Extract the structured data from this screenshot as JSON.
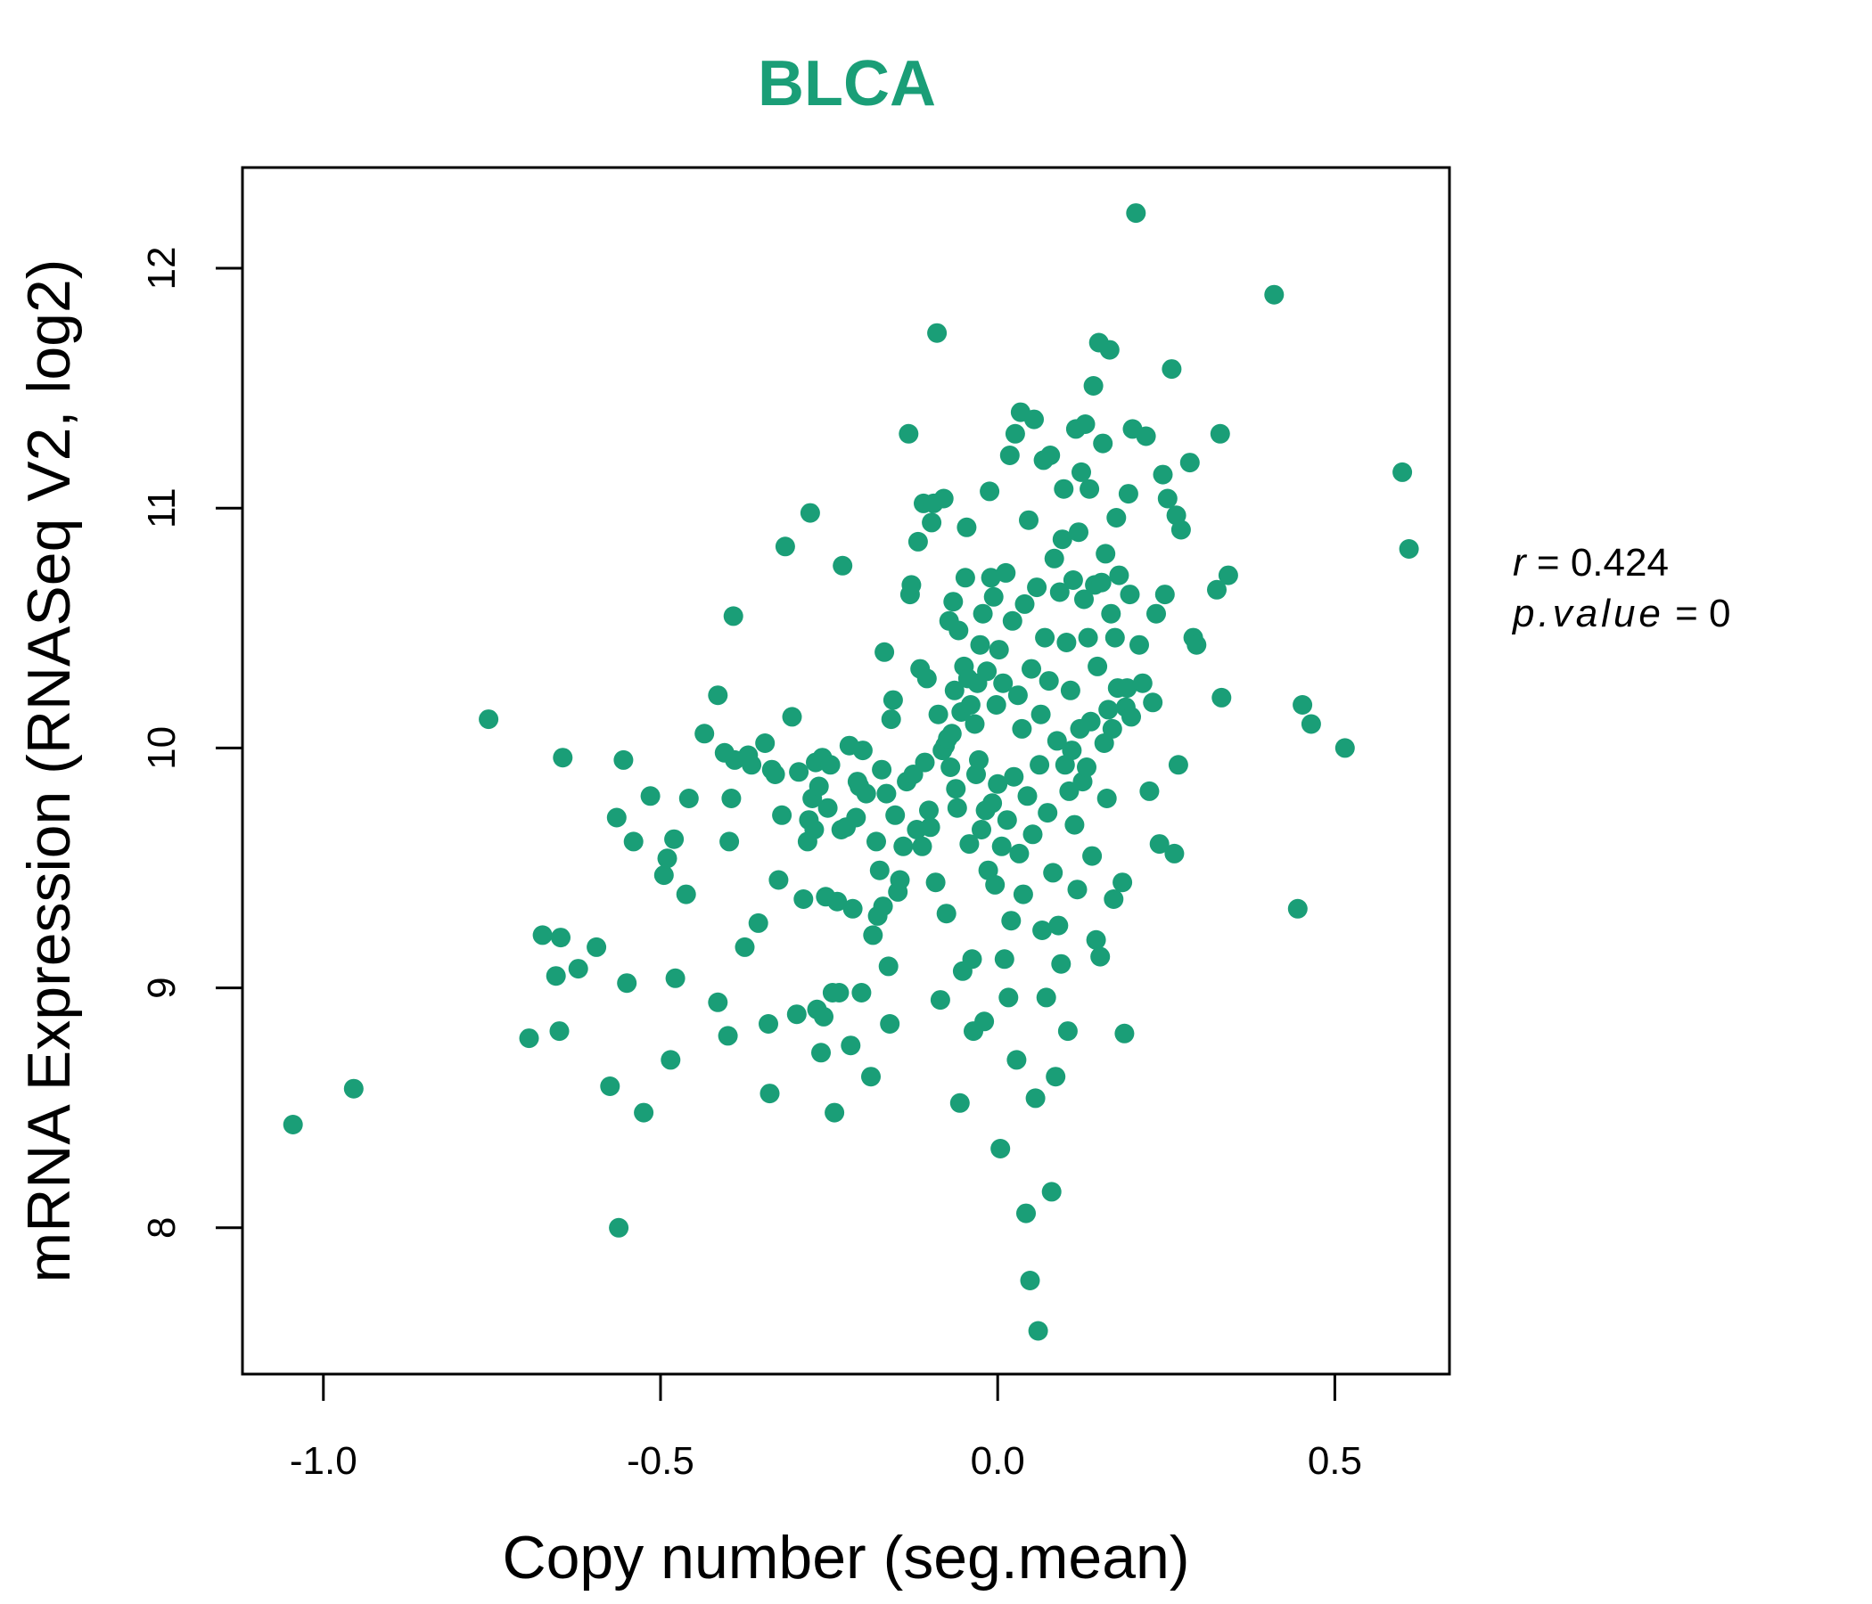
{
  "chart_data": {
    "type": "scatter",
    "title": "BLCA",
    "xlabel": "Copy number (seg.mean)",
    "ylabel": "mRNA Expression (RNASeq V2, log2)",
    "xlim": [
      -1.12,
      0.67
    ],
    "ylim": [
      7.39,
      12.42
    ],
    "x_ticks": [
      -1.0,
      -0.5,
      0.0,
      0.5
    ],
    "x_tick_labels": [
      "-1.0",
      "-0.5",
      "0.0",
      "0.5"
    ],
    "y_ticks": [
      8,
      9,
      10,
      11,
      12
    ],
    "y_tick_labels": [
      "8",
      "9",
      "10",
      "11",
      "12"
    ],
    "grid": false,
    "point_color": "#1a9e77",
    "stats": {
      "r_label": "r",
      "r_value": "0.424",
      "p_label": "p.value",
      "p_value": "0"
    },
    "series": [
      {
        "points": [
          [
            -1.045,
            8.43
          ],
          [
            -0.955,
            8.58
          ],
          [
            -0.755,
            10.12
          ],
          [
            -0.695,
            8.79
          ],
          [
            -0.675,
            9.22
          ],
          [
            -0.655,
            9.05
          ],
          [
            -0.65,
            8.82
          ],
          [
            -0.648,
            9.21
          ],
          [
            -0.645,
            9.96
          ],
          [
            -0.622,
            9.08
          ],
          [
            -0.595,
            9.17
          ],
          [
            -0.575,
            8.59
          ],
          [
            -0.565,
            9.71
          ],
          [
            -0.562,
            8.0
          ],
          [
            -0.555,
            9.95
          ],
          [
            -0.55,
            9.02
          ],
          [
            -0.54,
            9.61
          ],
          [
            -0.525,
            8.48
          ],
          [
            -0.515,
            9.8
          ],
          [
            -0.495,
            9.47
          ],
          [
            -0.49,
            9.54
          ],
          [
            -0.48,
            9.62
          ],
          [
            -0.478,
            9.04
          ],
          [
            -0.485,
            8.7
          ],
          [
            -0.462,
            9.39
          ],
          [
            -0.458,
            9.79
          ],
          [
            -0.435,
            10.06
          ],
          [
            -0.415,
            10.22
          ],
          [
            -0.415,
            8.94
          ],
          [
            -0.405,
            9.98
          ],
          [
            -0.4,
            8.8
          ],
          [
            -0.398,
            9.61
          ],
          [
            -0.395,
            9.79
          ],
          [
            -0.392,
            10.55
          ],
          [
            -0.39,
            9.95
          ],
          [
            -0.375,
            9.17
          ],
          [
            -0.37,
            9.97
          ],
          [
            -0.365,
            9.93
          ],
          [
            -0.355,
            9.27
          ],
          [
            -0.345,
            10.02
          ],
          [
            -0.34,
            8.85
          ],
          [
            -0.338,
            8.56
          ],
          [
            -0.335,
            9.91
          ],
          [
            -0.33,
            9.89
          ],
          [
            -0.325,
            9.45
          ],
          [
            -0.32,
            9.72
          ],
          [
            -0.315,
            10.84
          ],
          [
            -0.305,
            10.13
          ],
          [
            -0.298,
            8.89
          ],
          [
            -0.295,
            9.9
          ],
          [
            -0.288,
            9.37
          ],
          [
            -0.282,
            9.61
          ],
          [
            -0.28,
            9.7
          ],
          [
            -0.278,
            10.98
          ],
          [
            -0.275,
            9.79
          ],
          [
            -0.272,
            9.66
          ],
          [
            -0.27,
            9.94
          ],
          [
            -0.268,
            8.91
          ],
          [
            -0.265,
            9.84
          ],
          [
            -0.262,
            8.73
          ],
          [
            -0.26,
            9.96
          ],
          [
            -0.258,
            8.88
          ],
          [
            -0.255,
            9.38
          ],
          [
            -0.252,
            9.75
          ],
          [
            -0.248,
            9.93
          ],
          [
            -0.245,
            8.98
          ],
          [
            -0.242,
            8.48
          ],
          [
            -0.238,
            9.36
          ],
          [
            -0.235,
            8.98
          ],
          [
            -0.232,
            9.66
          ],
          [
            -0.23,
            10.76
          ],
          [
            -0.225,
            9.67
          ],
          [
            -0.22,
            10.01
          ],
          [
            -0.218,
            8.76
          ],
          [
            -0.215,
            9.33
          ],
          [
            -0.21,
            9.71
          ],
          [
            -0.208,
            9.86
          ],
          [
            -0.205,
            9.84
          ],
          [
            -0.202,
            8.98
          ],
          [
            -0.2,
            9.99
          ],
          [
            -0.195,
            9.81
          ],
          [
            -0.188,
            8.63
          ],
          [
            -0.185,
            9.22
          ],
          [
            -0.18,
            9.61
          ],
          [
            -0.178,
            9.3
          ],
          [
            -0.175,
            9.49
          ],
          [
            -0.172,
            9.91
          ],
          [
            -0.17,
            9.34
          ],
          [
            -0.168,
            10.4
          ],
          [
            -0.165,
            9.81
          ],
          [
            -0.162,
            9.09
          ],
          [
            -0.16,
            8.85
          ],
          [
            -0.158,
            10.12
          ],
          [
            -0.155,
            10.2
          ],
          [
            -0.152,
            9.72
          ],
          [
            -0.148,
            9.4
          ],
          [
            -0.145,
            9.45
          ],
          [
            -0.14,
            9.59
          ],
          [
            -0.135,
            9.86
          ],
          [
            -0.132,
            11.31
          ],
          [
            -0.13,
            10.64
          ],
          [
            -0.128,
            10.68
          ],
          [
            -0.125,
            9.89
          ],
          [
            -0.12,
            9.66
          ],
          [
            -0.118,
            10.86
          ],
          [
            -0.115,
            10.33
          ],
          [
            -0.112,
            9.59
          ],
          [
            -0.11,
            11.02
          ],
          [
            -0.108,
            9.94
          ],
          [
            -0.105,
            10.29
          ],
          [
            -0.102,
            9.74
          ],
          [
            -0.1,
            9.67
          ],
          [
            -0.098,
            10.94
          ],
          [
            -0.095,
            11.02
          ],
          [
            -0.092,
            9.44
          ],
          [
            -0.09,
            11.73
          ],
          [
            -0.088,
            10.14
          ],
          [
            -0.085,
            8.95
          ],
          [
            -0.082,
            9.99
          ],
          [
            -0.08,
            11.04
          ],
          [
            -0.078,
            10.01
          ],
          [
            -0.076,
            9.31
          ],
          [
            -0.074,
            10.04
          ],
          [
            -0.072,
            10.53
          ],
          [
            -0.07,
            9.92
          ],
          [
            -0.068,
            10.06
          ],
          [
            -0.066,
            10.61
          ],
          [
            -0.064,
            10.24
          ],
          [
            -0.062,
            9.83
          ],
          [
            -0.06,
            9.75
          ],
          [
            -0.058,
            10.49
          ],
          [
            -0.056,
            8.52
          ],
          [
            -0.054,
            10.15
          ],
          [
            -0.052,
            9.07
          ],
          [
            -0.05,
            10.34
          ],
          [
            -0.048,
            10.71
          ],
          [
            -0.046,
            10.92
          ],
          [
            -0.044,
            10.29
          ],
          [
            -0.042,
            9.6
          ],
          [
            -0.04,
            10.18
          ],
          [
            -0.038,
            9.12
          ],
          [
            -0.036,
            8.82
          ],
          [
            -0.034,
            10.1
          ],
          [
            -0.032,
            9.89
          ],
          [
            -0.03,
            10.27
          ],
          [
            -0.028,
            9.95
          ],
          [
            -0.026,
            10.43
          ],
          [
            -0.024,
            9.66
          ],
          [
            -0.022,
            10.56
          ],
          [
            -0.02,
            8.86
          ],
          [
            -0.018,
            9.74
          ],
          [
            -0.016,
            10.32
          ],
          [
            -0.014,
            9.49
          ],
          [
            -0.012,
            11.07
          ],
          [
            -0.01,
            10.71
          ],
          [
            -0.008,
            9.77
          ],
          [
            -0.006,
            10.63
          ],
          [
            -0.004,
            9.43
          ],
          [
            -0.002,
            10.18
          ],
          [
            0.0,
            9.85
          ],
          [
            0.002,
            10.41
          ],
          [
            0.004,
            8.33
          ],
          [
            0.006,
            9.59
          ],
          [
            0.008,
            10.27
          ],
          [
            0.01,
            9.12
          ],
          [
            0.012,
            10.73
          ],
          [
            0.014,
            9.7
          ],
          [
            0.016,
            8.96
          ],
          [
            0.018,
            11.22
          ],
          [
            0.02,
            9.28
          ],
          [
            0.022,
            10.53
          ],
          [
            0.024,
            9.88
          ],
          [
            0.026,
            11.31
          ],
          [
            0.028,
            8.7
          ],
          [
            0.03,
            10.22
          ],
          [
            0.032,
            9.56
          ],
          [
            0.034,
            11.4
          ],
          [
            0.036,
            10.08
          ],
          [
            0.038,
            9.39
          ],
          [
            0.04,
            10.6
          ],
          [
            0.042,
            8.06
          ],
          [
            0.044,
            9.8
          ],
          [
            0.046,
            10.95
          ],
          [
            0.048,
            7.78
          ],
          [
            0.05,
            10.33
          ],
          [
            0.052,
            9.64
          ],
          [
            0.054,
            11.37
          ],
          [
            0.056,
            8.54
          ],
          [
            0.058,
            10.67
          ],
          [
            0.06,
            7.57
          ],
          [
            0.062,
            9.93
          ],
          [
            0.064,
            10.14
          ],
          [
            0.066,
            9.24
          ],
          [
            0.068,
            11.2
          ],
          [
            0.07,
            10.46
          ],
          [
            0.072,
            8.96
          ],
          [
            0.074,
            9.73
          ],
          [
            0.076,
            10.28
          ],
          [
            0.078,
            11.22
          ],
          [
            0.08,
            8.15
          ],
          [
            0.082,
            9.48
          ],
          [
            0.084,
            10.79
          ],
          [
            0.086,
            8.63
          ],
          [
            0.088,
            10.03
          ],
          [
            0.09,
            9.26
          ],
          [
            0.092,
            10.65
          ],
          [
            0.094,
            9.1
          ],
          [
            0.096,
            10.87
          ],
          [
            0.098,
            11.08
          ],
          [
            0.1,
            9.93
          ],
          [
            0.102,
            10.44
          ],
          [
            0.104,
            8.82
          ],
          [
            0.106,
            9.82
          ],
          [
            0.108,
            10.24
          ],
          [
            0.11,
            9.99
          ],
          [
            0.112,
            10.7
          ],
          [
            0.114,
            9.68
          ],
          [
            0.116,
            11.33
          ],
          [
            0.118,
            9.41
          ],
          [
            0.12,
            10.9
          ],
          [
            0.122,
            10.08
          ],
          [
            0.124,
            11.15
          ],
          [
            0.126,
            9.86
          ],
          [
            0.128,
            10.62
          ],
          [
            0.13,
            11.35
          ],
          [
            0.132,
            9.92
          ],
          [
            0.134,
            10.46
          ],
          [
            0.136,
            11.08
          ],
          [
            0.138,
            10.11
          ],
          [
            0.14,
            9.55
          ],
          [
            0.142,
            11.51
          ],
          [
            0.144,
            10.68
          ],
          [
            0.146,
            9.2
          ],
          [
            0.148,
            10.34
          ],
          [
            0.15,
            11.69
          ],
          [
            0.152,
            9.13
          ],
          [
            0.154,
            10.69
          ],
          [
            0.156,
            11.27
          ],
          [
            0.158,
            10.02
          ],
          [
            0.16,
            10.81
          ],
          [
            0.162,
            9.79
          ],
          [
            0.164,
            10.16
          ],
          [
            0.166,
            11.66
          ],
          [
            0.168,
            10.56
          ],
          [
            0.17,
            10.08
          ],
          [
            0.172,
            9.37
          ],
          [
            0.174,
            10.46
          ],
          [
            0.176,
            10.96
          ],
          [
            0.178,
            10.25
          ],
          [
            0.18,
            10.72
          ],
          [
            0.185,
            9.44
          ],
          [
            0.188,
            8.81
          ],
          [
            0.19,
            10.17
          ],
          [
            0.192,
            10.25
          ],
          [
            0.194,
            11.06
          ],
          [
            0.196,
            10.64
          ],
          [
            0.198,
            10.13
          ],
          [
            0.2,
            11.33
          ],
          [
            0.205,
            12.23
          ],
          [
            0.21,
            10.43
          ],
          [
            0.215,
            10.27
          ],
          [
            0.22,
            11.3
          ],
          [
            0.225,
            9.82
          ],
          [
            0.23,
            10.19
          ],
          [
            0.235,
            10.56
          ],
          [
            0.24,
            9.6
          ],
          [
            0.245,
            11.14
          ],
          [
            0.248,
            10.64
          ],
          [
            0.252,
            11.04
          ],
          [
            0.258,
            11.58
          ],
          [
            0.262,
            9.56
          ],
          [
            0.265,
            10.97
          ],
          [
            0.268,
            9.93
          ],
          [
            0.272,
            10.91
          ],
          [
            0.285,
            11.19
          ],
          [
            0.29,
            10.46
          ],
          [
            0.295,
            10.43
          ],
          [
            0.325,
            10.66
          ],
          [
            0.33,
            11.31
          ],
          [
            0.332,
            10.21
          ],
          [
            0.342,
            10.72
          ],
          [
            0.41,
            11.89
          ],
          [
            0.445,
            9.33
          ],
          [
            0.452,
            10.18
          ],
          [
            0.465,
            10.1
          ],
          [
            0.515,
            10.0
          ],
          [
            0.6,
            11.15
          ],
          [
            0.61,
            10.83
          ]
        ]
      }
    ]
  }
}
